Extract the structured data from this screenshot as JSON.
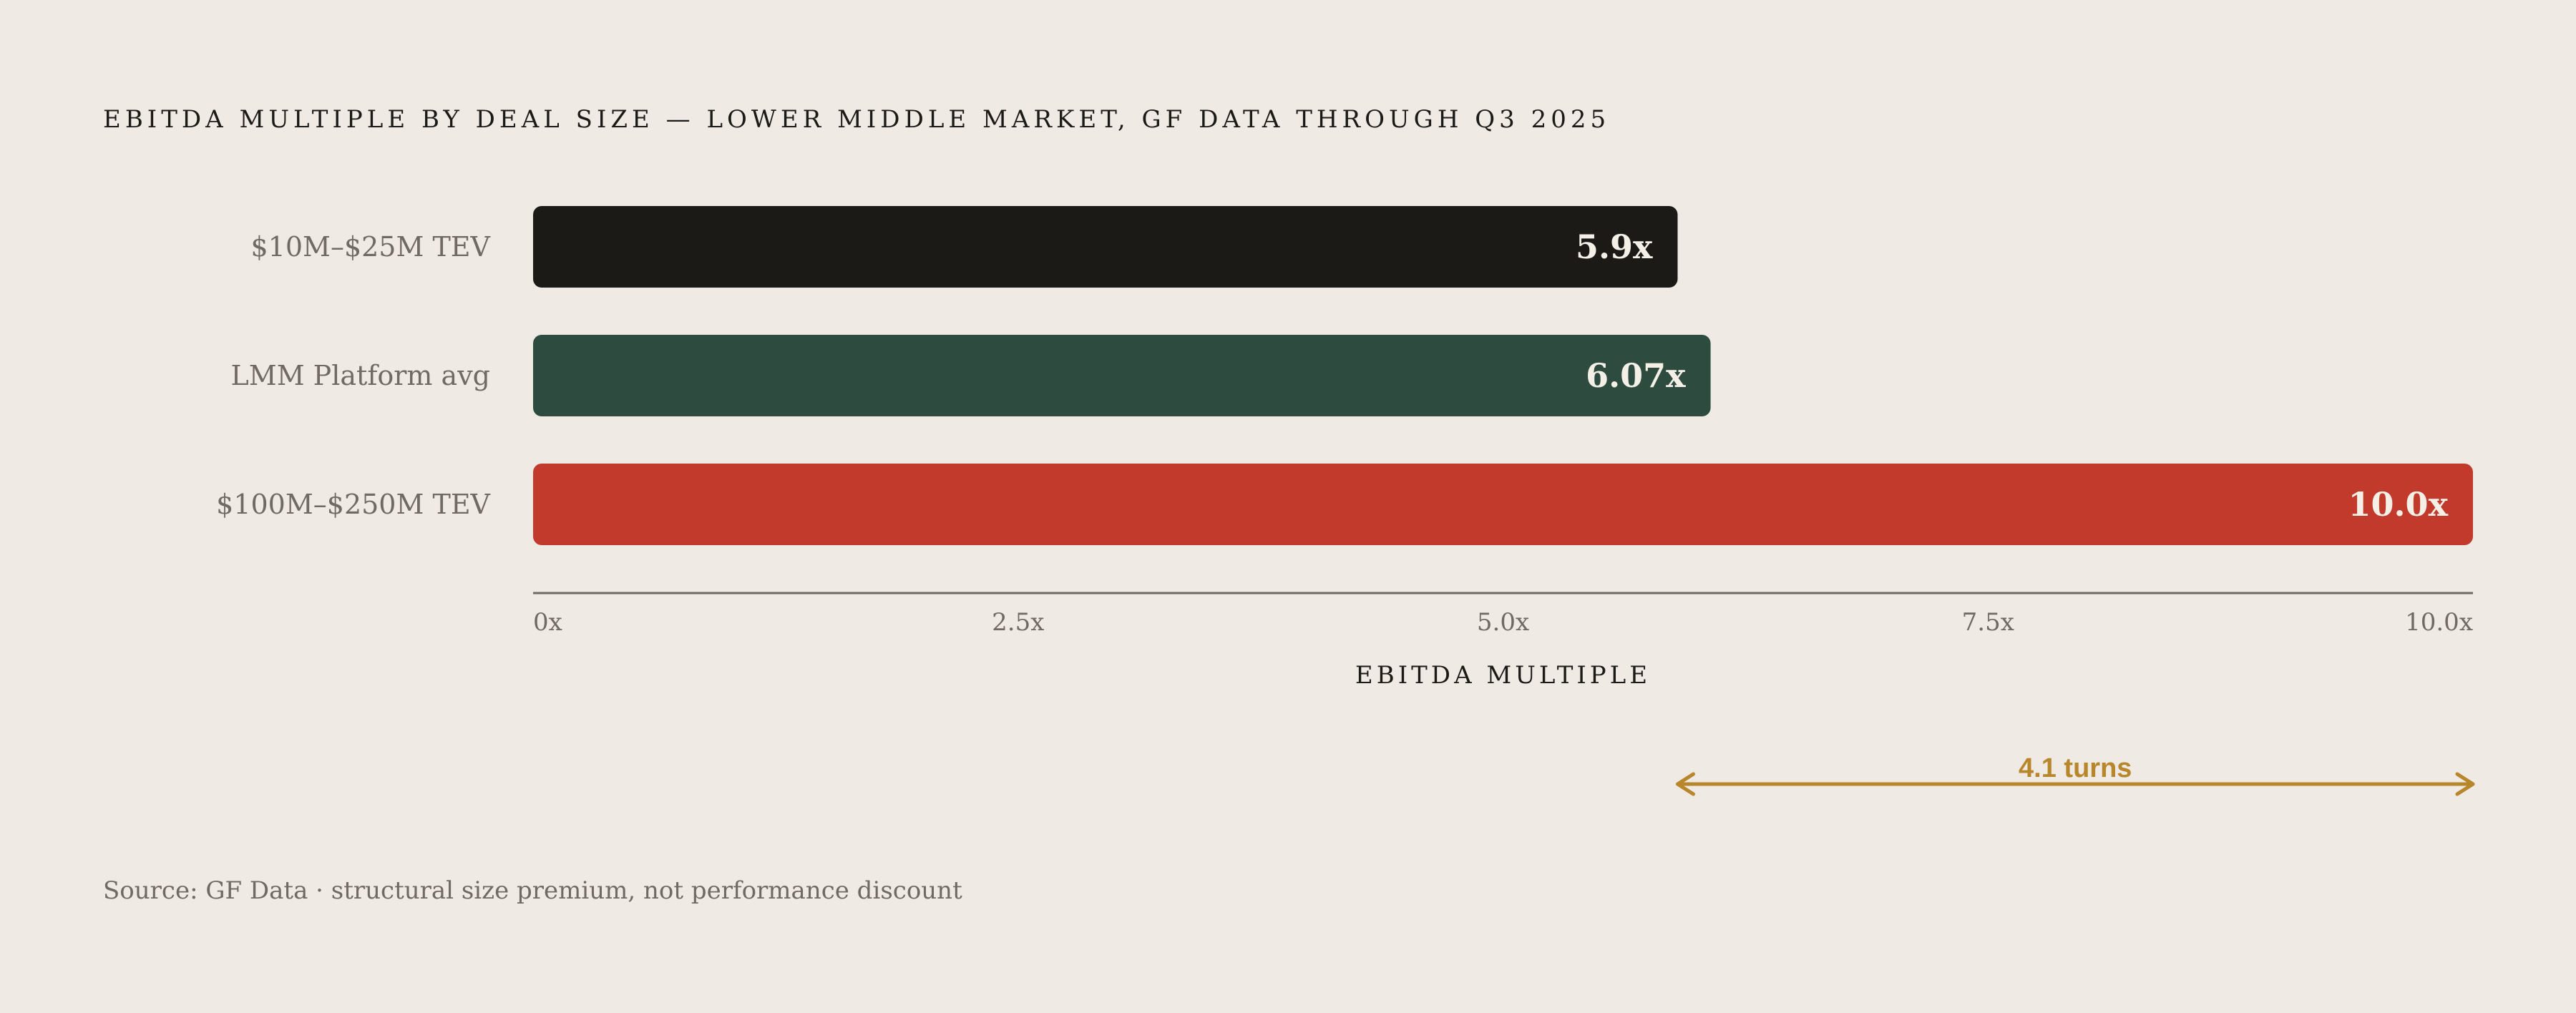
{
  "chart_data": {
    "type": "bar",
    "orientation": "horizontal",
    "title": "EBITDA MULTIPLE BY DEAL SIZE — LOWER MIDDLE MARKET, GF DATA THROUGH Q3 2025",
    "categories": [
      "$10M–$25M TEV",
      "LMM Platform avg",
      "$100M–$250M TEV"
    ],
    "values": [
      5.9,
      6.07,
      10.0
    ],
    "value_labels": [
      "5.9x",
      "6.07x",
      "10.0x"
    ],
    "colors": [
      "#1b1a17",
      "#2d4b3f",
      "#c13a2c"
    ],
    "xlabel": "EBITDA MULTIPLE",
    "ylabel": "",
    "xlim": [
      0,
      10
    ],
    "x_ticks": [
      0,
      2.5,
      5,
      7.5,
      10
    ],
    "x_tick_labels": [
      "0x",
      "2.5x",
      "5.0x",
      "7.5x",
      "10.0x"
    ],
    "grid": false,
    "annotation": {
      "label": "4.1 turns",
      "from": 5.9,
      "to": 10.0,
      "color": "#b8862b"
    },
    "source": "Source: GF Data · structural size premium, not performance discount"
  }
}
